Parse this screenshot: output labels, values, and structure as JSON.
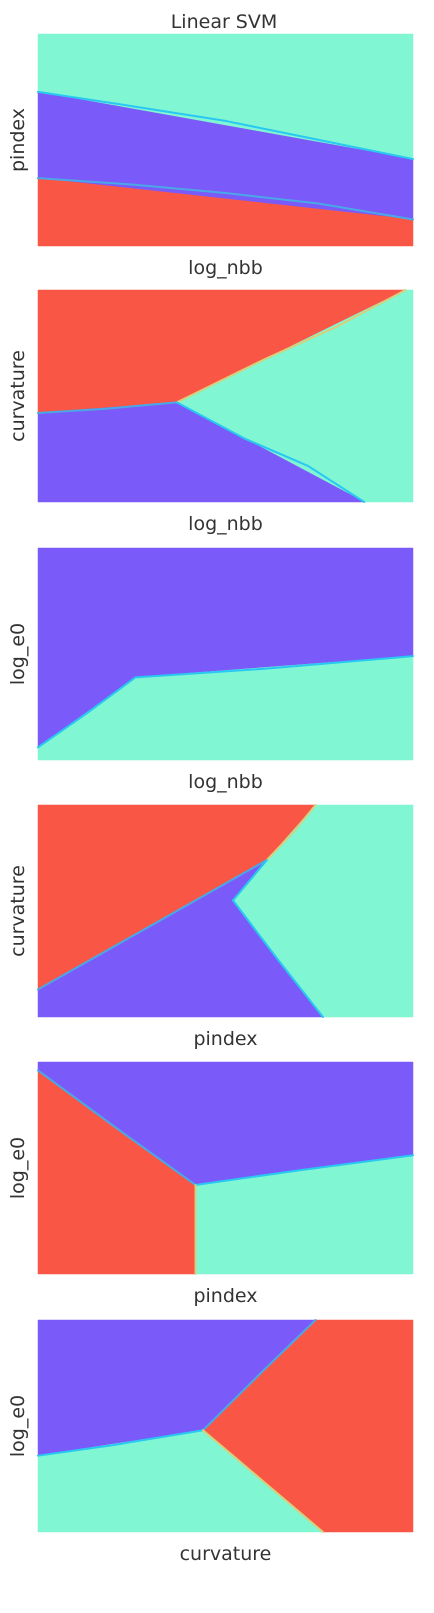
{
  "figure": {
    "title": "Linear SVM"
  },
  "palette": {
    "red": "#F95646",
    "purple": "#7A5AF8",
    "teal": "#80F6D2",
    "boundary_red_purple": "#4AA8E6",
    "boundary_purple_teal": "#28C8F2",
    "boundary_red_teal": "#D7CF7B"
  },
  "chart_data": [
    {
      "type": "heatmap",
      "title": "",
      "xlabel": "log_nbb",
      "ylabel": "pindex",
      "grid": false,
      "regions": [
        {
          "color": "#80F6D2",
          "polygon": [
            [
              0,
              0.727
            ],
            [
              0,
              1
            ],
            [
              1,
              1
            ],
            [
              1,
              0.41
            ]
          ]
        },
        {
          "color": "#7A5AF8",
          "polygon": [
            [
              0,
              0.727
            ],
            [
              1,
              0.41
            ],
            [
              1,
              0.125
            ],
            [
              0,
              0.32
            ]
          ]
        },
        {
          "color": "#F95646",
          "polygon": [
            [
              0,
              0
            ],
            [
              0,
              0.32
            ],
            [
              1,
              0.125
            ],
            [
              1,
              0
            ]
          ]
        }
      ],
      "boundaries": [
        {
          "color": "#28C8F2",
          "points": [
            [
              0,
              0.727
            ],
            [
              0.25,
              0.66
            ],
            [
              0.5,
              0.59
            ],
            [
              0.75,
              0.5
            ],
            [
              1,
              0.41
            ]
          ]
        },
        {
          "color": "#4AA8E6",
          "points": [
            [
              0,
              0.32
            ],
            [
              0.25,
              0.29
            ],
            [
              0.5,
              0.25
            ],
            [
              0.75,
              0.2
            ],
            [
              1,
              0.125
            ]
          ]
        }
      ]
    },
    {
      "type": "heatmap",
      "title": "",
      "xlabel": "log_nbb",
      "ylabel": "curvature",
      "grid": false,
      "regions": [
        {
          "color": "#F95646",
          "polygon": [
            [
              0,
              0.42
            ],
            [
              0.37,
              0.47
            ],
            [
              0.98,
              1
            ],
            [
              0,
              1
            ]
          ]
        },
        {
          "color": "#80F6D2",
          "polygon": [
            [
              0.37,
              0.47
            ],
            [
              0.98,
              1
            ],
            [
              1,
              1
            ],
            [
              1,
              0
            ],
            [
              0.87,
              0
            ]
          ]
        },
        {
          "color": "#7A5AF8",
          "polygon": [
            [
              0,
              0
            ],
            [
              0,
              0.42
            ],
            [
              0.37,
              0.47
            ],
            [
              0.87,
              0
            ]
          ]
        }
      ],
      "boundaries": [
        {
          "color": "#4AA8E6",
          "points": [
            [
              0,
              0.42
            ],
            [
              0.18,
              0.44
            ],
            [
              0.37,
              0.47
            ]
          ]
        },
        {
          "color": "#D7CF7B",
          "points": [
            [
              0.37,
              0.47
            ],
            [
              0.6,
              0.67
            ],
            [
              0.8,
              0.83
            ],
            [
              0.98,
              1
            ]
          ]
        },
        {
          "color": "#28C8F2",
          "points": [
            [
              0.37,
              0.47
            ],
            [
              0.55,
              0.3
            ],
            [
              0.72,
              0.17
            ],
            [
              0.87,
              0
            ]
          ]
        }
      ]
    },
    {
      "type": "heatmap",
      "title": "",
      "xlabel": "log_nbb",
      "ylabel": "log_e0",
      "grid": false,
      "regions": [
        {
          "color": "#7A5AF8",
          "polygon": [
            [
              0,
              0.06
            ],
            [
              0.26,
              0.39
            ],
            [
              1,
              0.49
            ],
            [
              1,
              1
            ],
            [
              0,
              1
            ]
          ]
        },
        {
          "color": "#80F6D2",
          "polygon": [
            [
              0,
              0
            ],
            [
              0,
              0.06
            ],
            [
              0.26,
              0.39
            ],
            [
              1,
              0.49
            ],
            [
              1,
              0
            ]
          ]
        }
      ],
      "boundaries": [
        {
          "color": "#28C8F2",
          "points": [
            [
              0,
              0.06
            ],
            [
              0.13,
              0.22
            ],
            [
              0.26,
              0.39
            ],
            [
              0.6,
              0.43
            ],
            [
              1,
              0.49
            ]
          ]
        }
      ]
    },
    {
      "type": "heatmap",
      "title": "",
      "xlabel": "pindex",
      "ylabel": "curvature",
      "grid": false,
      "regions": [
        {
          "color": "#F95646",
          "polygon": [
            [
              0,
              0.13
            ],
            [
              0,
              1
            ],
            [
              0.74,
              1
            ],
            [
              0.61,
              0.74
            ]
          ]
        },
        {
          "color": "#80F6D2",
          "polygon": [
            [
              0.74,
              1
            ],
            [
              1,
              1
            ],
            [
              1,
              0
            ],
            [
              0.76,
              0
            ],
            [
              0.52,
              0.55
            ],
            [
              0.61,
              0.74
            ]
          ]
        },
        {
          "color": "#7A5AF8",
          "polygon": [
            [
              0,
              0
            ],
            [
              0,
              0.13
            ],
            [
              0.61,
              0.74
            ],
            [
              0.52,
              0.55
            ],
            [
              0.76,
              0
            ]
          ]
        }
      ],
      "boundaries": [
        {
          "color": "#4AA8E6",
          "points": [
            [
              0,
              0.13
            ],
            [
              0.3,
              0.43
            ],
            [
              0.61,
              0.74
            ]
          ]
        },
        {
          "color": "#D7CF7B",
          "points": [
            [
              0.61,
              0.74
            ],
            [
              0.68,
              0.87
            ],
            [
              0.74,
              1
            ]
          ]
        },
        {
          "color": "#28C8F2",
          "points": [
            [
              0.61,
              0.74
            ],
            [
              0.52,
              0.55
            ],
            [
              0.64,
              0.27
            ],
            [
              0.76,
              0
            ]
          ]
        }
      ]
    },
    {
      "type": "heatmap",
      "title": "",
      "xlabel": "pindex",
      "ylabel": "log_e0",
      "grid": false,
      "regions": [
        {
          "color": "#7A5AF8",
          "polygon": [
            [
              0,
              0.96
            ],
            [
              0.42,
              0.42
            ],
            [
              1,
              0.56
            ],
            [
              1,
              1
            ],
            [
              0,
              1
            ]
          ]
        },
        {
          "color": "#F95646",
          "polygon": [
            [
              0,
              0
            ],
            [
              0,
              0.96
            ],
            [
              0.42,
              0.42
            ],
            [
              0.42,
              0
            ]
          ]
        },
        {
          "color": "#80F6D2",
          "polygon": [
            [
              0.42,
              0
            ],
            [
              0.42,
              0.42
            ],
            [
              1,
              0.56
            ],
            [
              1,
              0
            ]
          ]
        }
      ],
      "boundaries": [
        {
          "color": "#4AA8E6",
          "points": [
            [
              0,
              0.96
            ],
            [
              0.2,
              0.7
            ],
            [
              0.42,
              0.42
            ]
          ]
        },
        {
          "color": "#28C8F2",
          "points": [
            [
              0.42,
              0.42
            ],
            [
              0.7,
              0.49
            ],
            [
              1,
              0.56
            ]
          ]
        },
        {
          "color": "#D7CF7B",
          "points": [
            [
              0.42,
              0.42
            ],
            [
              0.42,
              0
            ]
          ]
        }
      ]
    },
    {
      "type": "heatmap",
      "title": "",
      "xlabel": "curvature",
      "ylabel": "log_e0",
      "grid": false,
      "regions": [
        {
          "color": "#7A5AF8",
          "polygon": [
            [
              0,
              0.36
            ],
            [
              0.44,
              0.48
            ],
            [
              0.74,
              1
            ],
            [
              0,
              1
            ]
          ]
        },
        {
          "color": "#F95646",
          "polygon": [
            [
              0.44,
              0.48
            ],
            [
              0.74,
              1
            ],
            [
              1,
              1
            ],
            [
              1,
              0
            ],
            [
              0.76,
              0
            ]
          ]
        },
        {
          "color": "#80F6D2",
          "polygon": [
            [
              0,
              0
            ],
            [
              0,
              0.36
            ],
            [
              0.44,
              0.48
            ],
            [
              0.76,
              0
            ]
          ]
        }
      ],
      "boundaries": [
        {
          "color": "#28C8F2",
          "points": [
            [
              0,
              0.36
            ],
            [
              0.2,
              0.41
            ],
            [
              0.44,
              0.48
            ]
          ]
        },
        {
          "color": "#4AA8E6",
          "points": [
            [
              0.44,
              0.48
            ],
            [
              0.6,
              0.76
            ],
            [
              0.74,
              1
            ]
          ]
        },
        {
          "color": "#D7CF7B",
          "points": [
            [
              0.44,
              0.48
            ],
            [
              0.6,
              0.24
            ],
            [
              0.76,
              0
            ]
          ]
        }
      ]
    }
  ]
}
